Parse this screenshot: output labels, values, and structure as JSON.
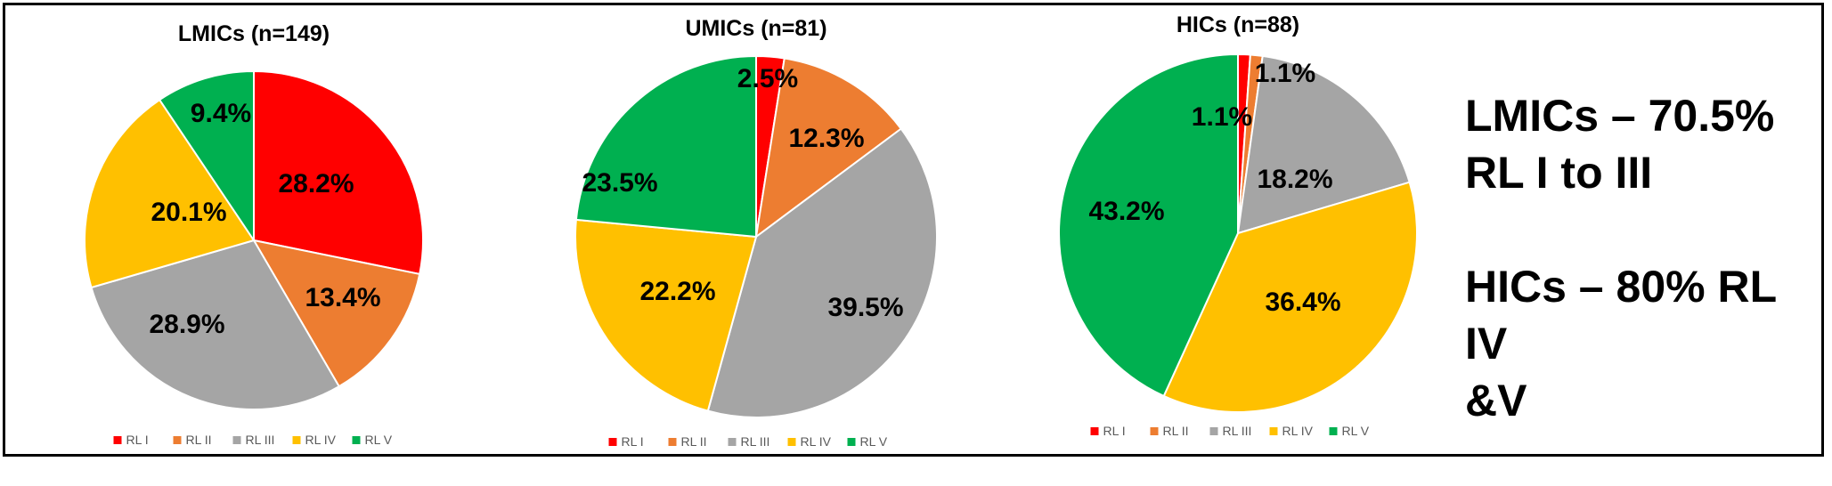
{
  "chart_data": [
    {
      "type": "pie",
      "title": "LMICs (n=149)",
      "labels": [
        "RL I",
        "RL II",
        "RL III",
        "RL IV",
        "RL V"
      ],
      "values": [
        28.2,
        13.4,
        28.9,
        20.1,
        9.4
      ],
      "value_labels": [
        "28.2%",
        "13.4%",
        "28.9%",
        "20.1%",
        "9.4%"
      ],
      "colors": [
        "#ff0000",
        "#ed7d31",
        "#a5a5a5",
        "#ffc000",
        "#00b050"
      ],
      "legend_position": "bottom"
    },
    {
      "type": "pie",
      "title": "UMICs (n=81)",
      "labels": [
        "RL I",
        "RL II",
        "RL III",
        "RL IV",
        "RL V"
      ],
      "values": [
        2.5,
        12.3,
        39.5,
        22.2,
        23.5
      ],
      "value_labels": [
        "2.5%",
        "12.3%",
        "39.5%",
        "22.2%",
        "23.5%"
      ],
      "colors": [
        "#ff0000",
        "#ed7d31",
        "#a5a5a5",
        "#ffc000",
        "#00b050"
      ],
      "legend_position": "bottom"
    },
    {
      "type": "pie",
      "title": "HICs (n=88)",
      "labels": [
        "RL I",
        "RL II",
        "RL III",
        "RL IV",
        "RL V"
      ],
      "values": [
        1.1,
        1.1,
        18.2,
        36.4,
        43.2
      ],
      "value_labels": [
        "1.1%",
        "1.1%",
        "18.2%",
        "36.4%",
        "43.2%"
      ],
      "colors": [
        "#ff0000",
        "#ed7d31",
        "#a5a5a5",
        "#ffc000",
        "#00b050"
      ],
      "legend_position": "bottom"
    }
  ],
  "summary": {
    "line1": "LMICs – 70.5%",
    "line2": "RL I to III",
    "line3": "HICs – 80% RL IV",
    "line4": "&V"
  }
}
